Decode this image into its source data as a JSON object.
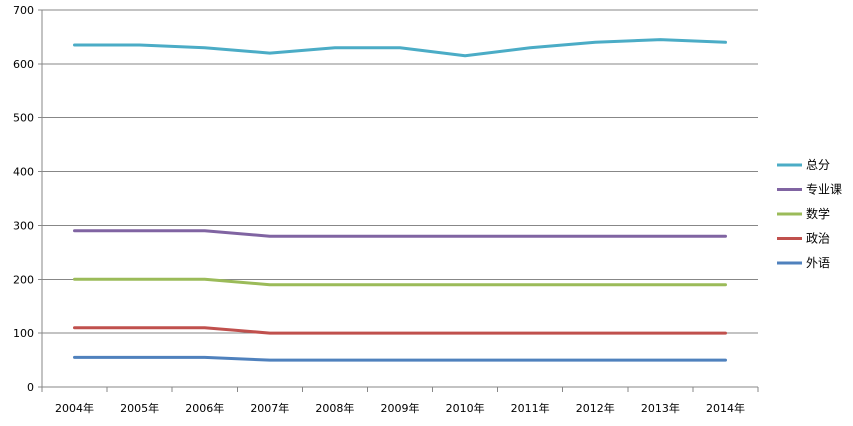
{
  "chart_data": {
    "type": "line",
    "title": "",
    "xlabel": "",
    "ylabel": "",
    "ylim": [
      0,
      700
    ],
    "yticks": [
      0,
      100,
      200,
      300,
      400,
      500,
      600,
      700
    ],
    "grid": true,
    "legend_position": "right",
    "categories": [
      "2004年",
      "2005年",
      "2006年",
      "2007年",
      "2008年",
      "2009年",
      "2010年",
      "2011年",
      "2012年",
      "2013年",
      "2014年"
    ],
    "series": [
      {
        "name": "总分",
        "color": "#4bacc6",
        "values": [
          635,
          635,
          630,
          620,
          630,
          630,
          615,
          630,
          640,
          645,
          640
        ]
      },
      {
        "name": "专业课",
        "color": "#8064a2",
        "values": [
          290,
          290,
          290,
          280,
          280,
          280,
          280,
          280,
          280,
          280,
          280
        ]
      },
      {
        "name": "数学",
        "color": "#9bbb59",
        "values": [
          200,
          200,
          200,
          190,
          190,
          190,
          190,
          190,
          190,
          190,
          190
        ]
      },
      {
        "name": "政治",
        "color": "#c0504d",
        "values": [
          110,
          110,
          110,
          100,
          100,
          100,
          100,
          100,
          100,
          100,
          100
        ]
      },
      {
        "name": "外语",
        "color": "#4f81bd",
        "values": [
          55,
          55,
          55,
          50,
          50,
          50,
          50,
          50,
          50,
          50,
          50
        ]
      }
    ]
  }
}
